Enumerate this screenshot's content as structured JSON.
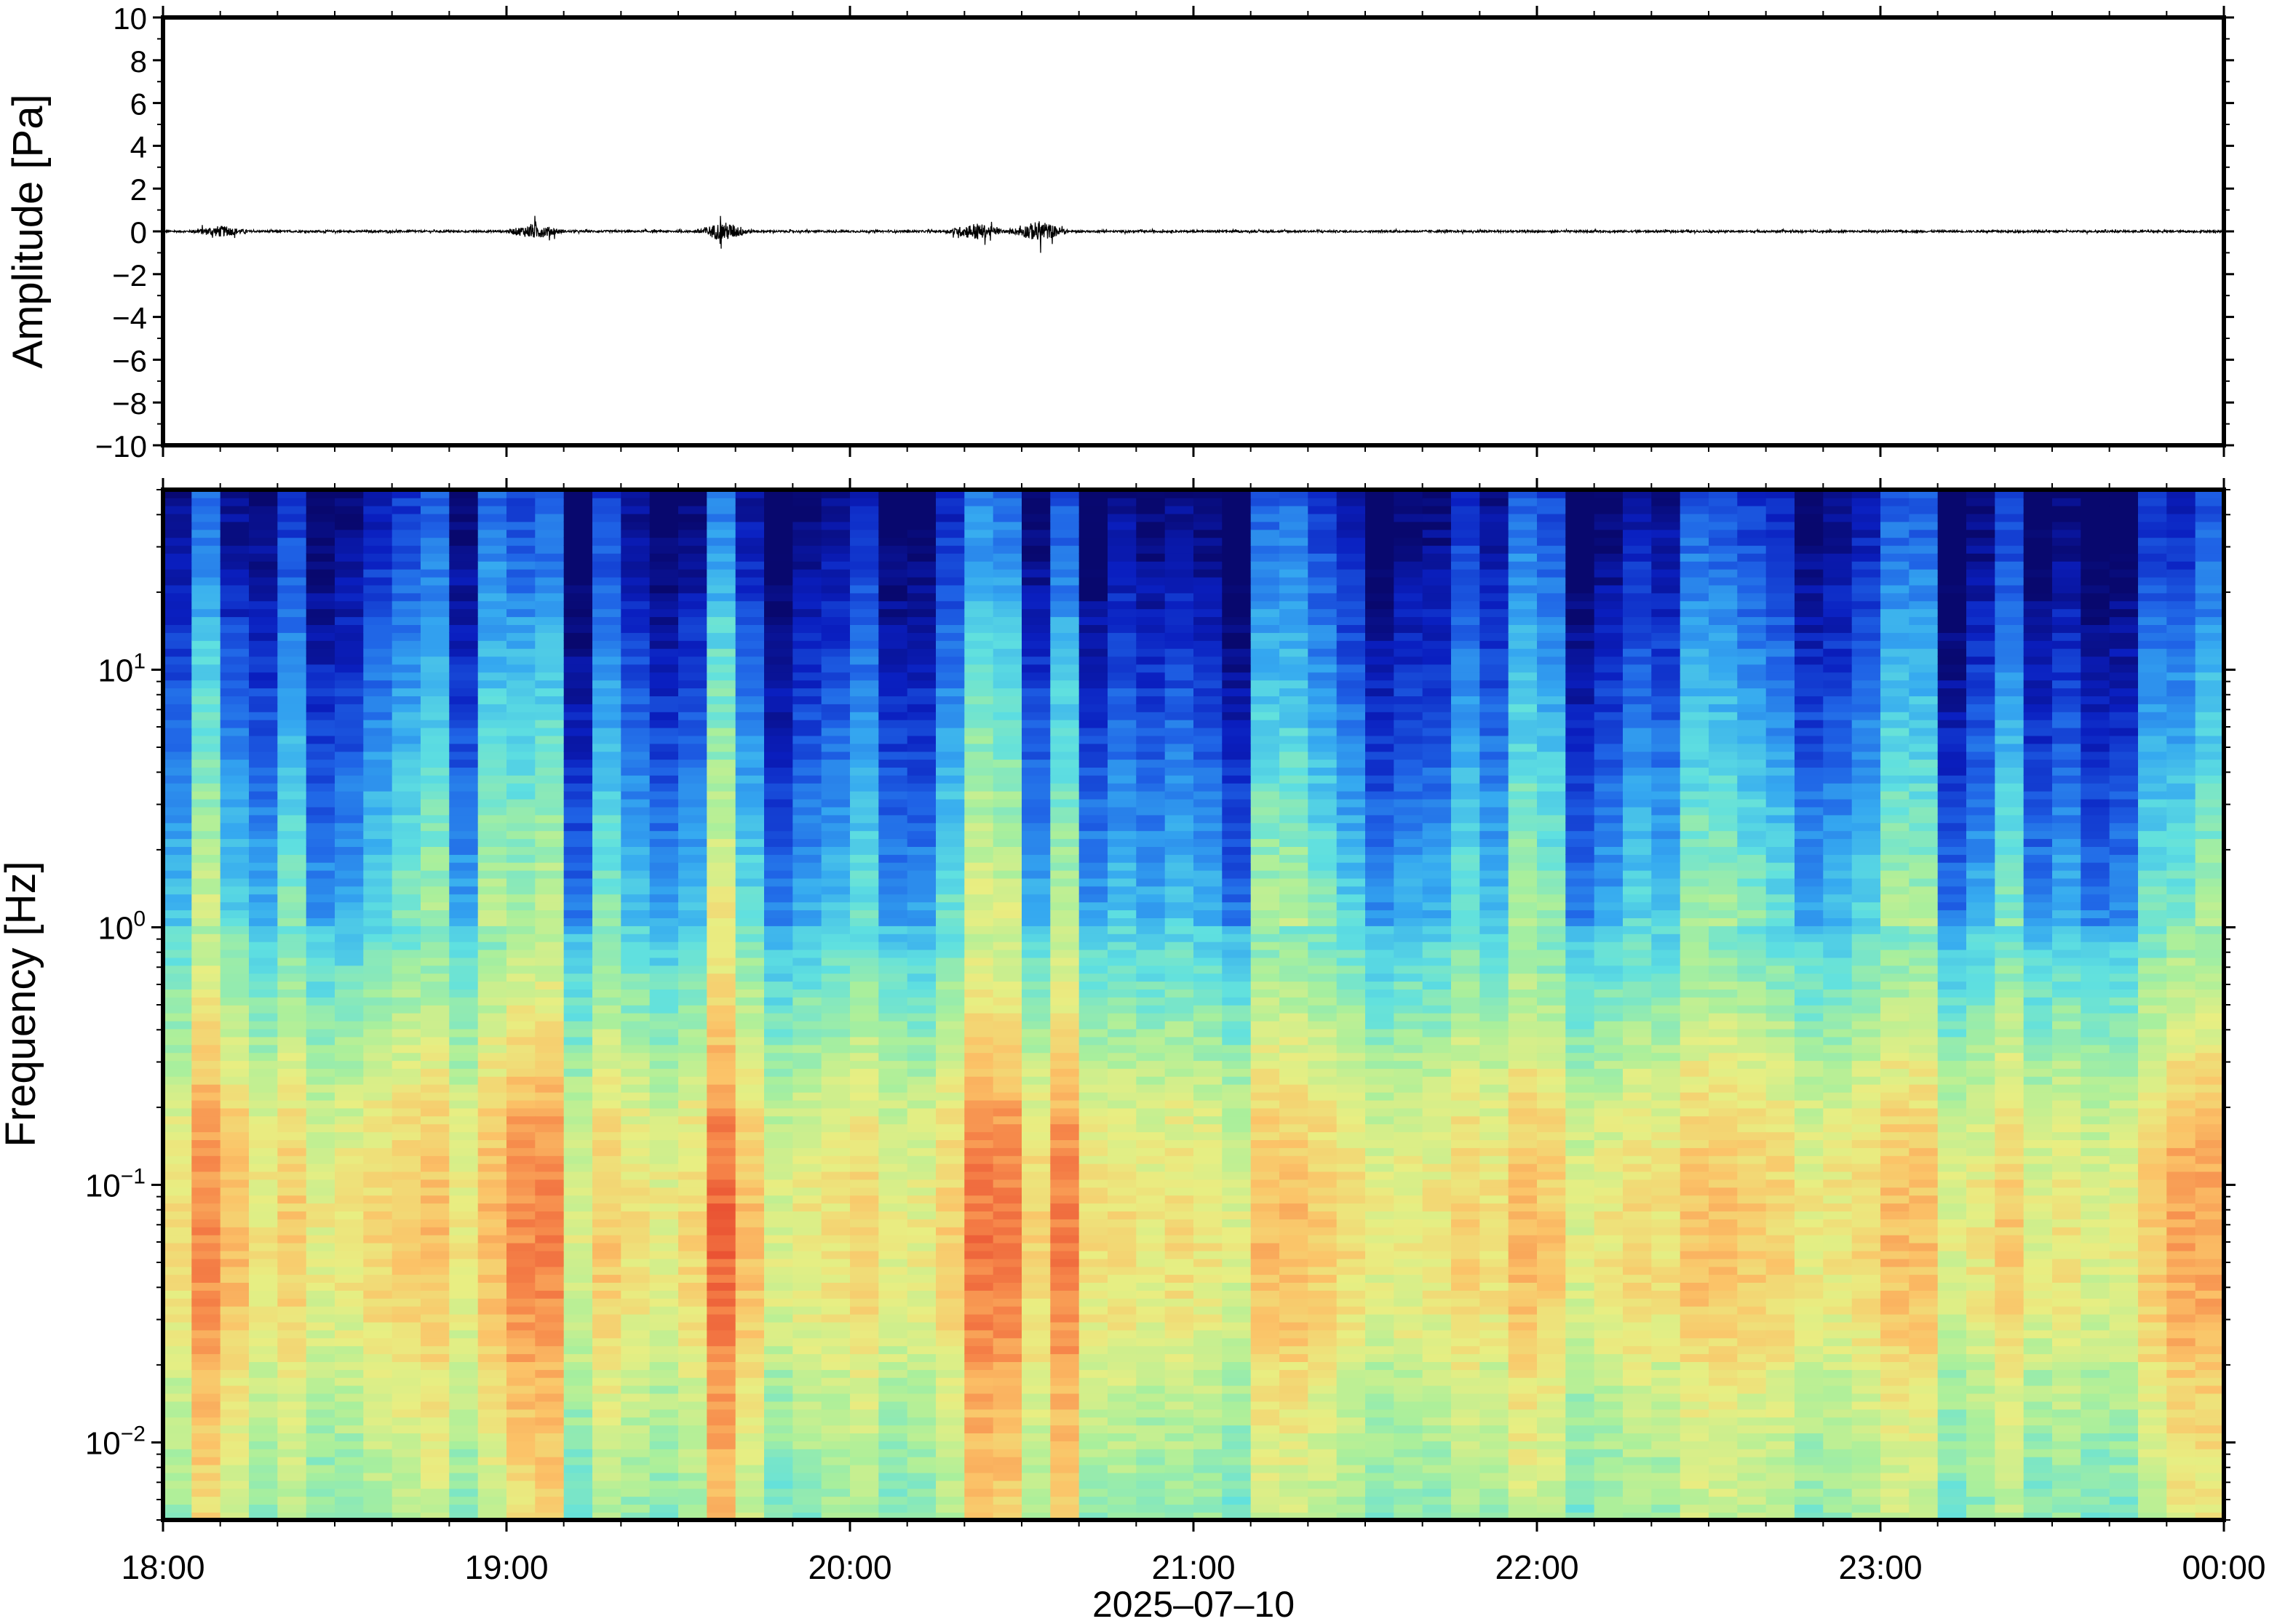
{
  "figure": {
    "xlabel": "2025–07–10",
    "x_ticks": [
      "18:00",
      "19:00",
      "20:00",
      "21:00",
      "22:00",
      "23:00",
      "00:00"
    ]
  },
  "colors": {
    "waveform": "#000000",
    "frame": "#000000",
    "background": "#ffffff",
    "colormap": [
      "#08086e",
      "#0a1fc0",
      "#1f63e6",
      "#35a9f0",
      "#5fe0e0",
      "#a9ef9c",
      "#e8ee82",
      "#fbc368",
      "#f6874a",
      "#e84c30"
    ]
  },
  "chart_data": [
    {
      "type": "line",
      "ylabel": "Amplitude [Pa]",
      "xlim": [
        "18:00",
        "00:00"
      ],
      "ylim": [
        -10,
        10
      ],
      "y_ticks": [
        "10",
        "8",
        "6",
        "4",
        "2",
        "0",
        "−2",
        "−4",
        "−6",
        "−8",
        "−10"
      ],
      "grid": false,
      "series": [
        {
          "description_of_burst_times_hours_after_1800": [
            0.2,
            1.1,
            1.65,
            2.4,
            2.55
          ],
          "baseline_amplitude_pa": 0.1,
          "burst_amplitudes_pa": [
            {
              "time": "18:10",
              "max_abs_pa": 0.5
            },
            {
              "time": "19:05",
              "max_abs_pa": 0.7
            },
            {
              "time": "19:38",
              "max_abs_pa": 0.9
            },
            {
              "time": "20:22",
              "max_abs_pa": 0.8
            },
            {
              "time": "20:33",
              "max_abs_pa": 1.0
            }
          ]
        }
      ]
    },
    {
      "type": "heatmap",
      "ylabel": "Frequency [Hz]",
      "yscale": "log",
      "ylim": [
        0.005,
        50
      ],
      "xlim": [
        "18:00",
        "00:00"
      ],
      "y_ticks": [
        {
          "base": "10",
          "exp": "1"
        },
        {
          "base": "10",
          "exp": "0"
        },
        {
          "base": "10",
          "exp": "−1"
        },
        {
          "base": "10",
          "exp": "−2"
        }
      ],
      "x_ticks": [
        "18:00",
        "19:00",
        "20:00",
        "21:00",
        "22:00",
        "23:00",
        "00:00"
      ],
      "colorscale": "jet-like (dark blue = low power, red = high power)",
      "bright_columns": [
        {
          "time": "18:10",
          "strength": 0.8
        },
        {
          "time": "19:05",
          "strength": 1.0
        },
        {
          "time": "19:38",
          "strength": 0.9
        },
        {
          "time": "20:25",
          "strength": 1.0
        },
        {
          "time": "20:37",
          "strength": 0.8
        },
        {
          "time": "23:54",
          "strength": 0.8
        }
      ],
      "hot_band_hz": [
        0.02,
        0.2
      ],
      "quiet_high_freq_hz": [
        1,
        50
      ]
    }
  ]
}
